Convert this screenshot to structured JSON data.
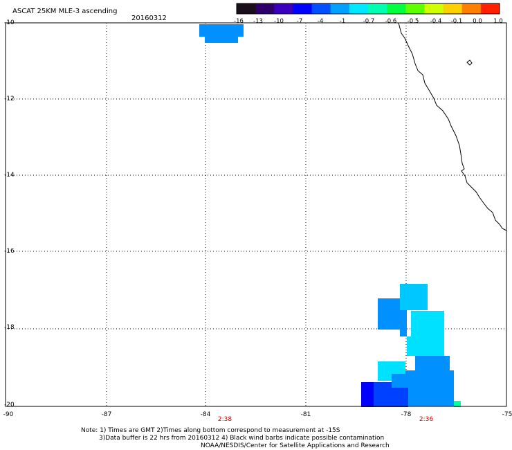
{
  "header": {
    "title": "ASCAT 25KM MLE-3 ascending",
    "date": "20160312"
  },
  "colorbar": {
    "labels": [
      "-16",
      "-13",
      "-10",
      "-7",
      "-4",
      "-1",
      "-0.7",
      "-0.6",
      "-0.5",
      "-0.4",
      "-0.1",
      "0.0",
      "1.0"
    ],
    "colors": [
      "#1a0f1a",
      "#2f006a",
      "#3a00bd",
      "#0000ff",
      "#0050ff",
      "#00a0ff",
      "#00e8ff",
      "#00ffb0",
      "#00ff40",
      "#60ff00",
      "#d0ff00",
      "#ffd000",
      "#ff8000",
      "#ff2000"
    ]
  },
  "map": {
    "lon_range": [
      -90,
      -75
    ],
    "lat_range": [
      -20,
      -10
    ],
    "x_ticks": [
      "-90",
      "-87",
      "-84",
      "-81",
      "-78",
      "-75"
    ],
    "y_ticks": [
      "-10",
      "-12",
      "-14",
      "-16",
      "-18",
      "-20"
    ],
    "pass_times": [
      "2:38",
      "2:36"
    ],
    "data_colors": {
      "mid": "#0090ff",
      "light": "#00c8ff",
      "cyan": "#00e0ff",
      "dark": "#0000ff",
      "blue2": "#0040ff",
      "green": "#00ffa0"
    }
  },
  "notes": {
    "line1": "Note: 1) Times are GMT 2)Times along bottom correspond to measurement at -15S",
    "line2": "3)Data buffer is 22 hrs from 20160312 4) Black wind barbs indicate possible contamination",
    "line3": "NOAA/NESDIS/Center for Satellite Applications and Research"
  }
}
